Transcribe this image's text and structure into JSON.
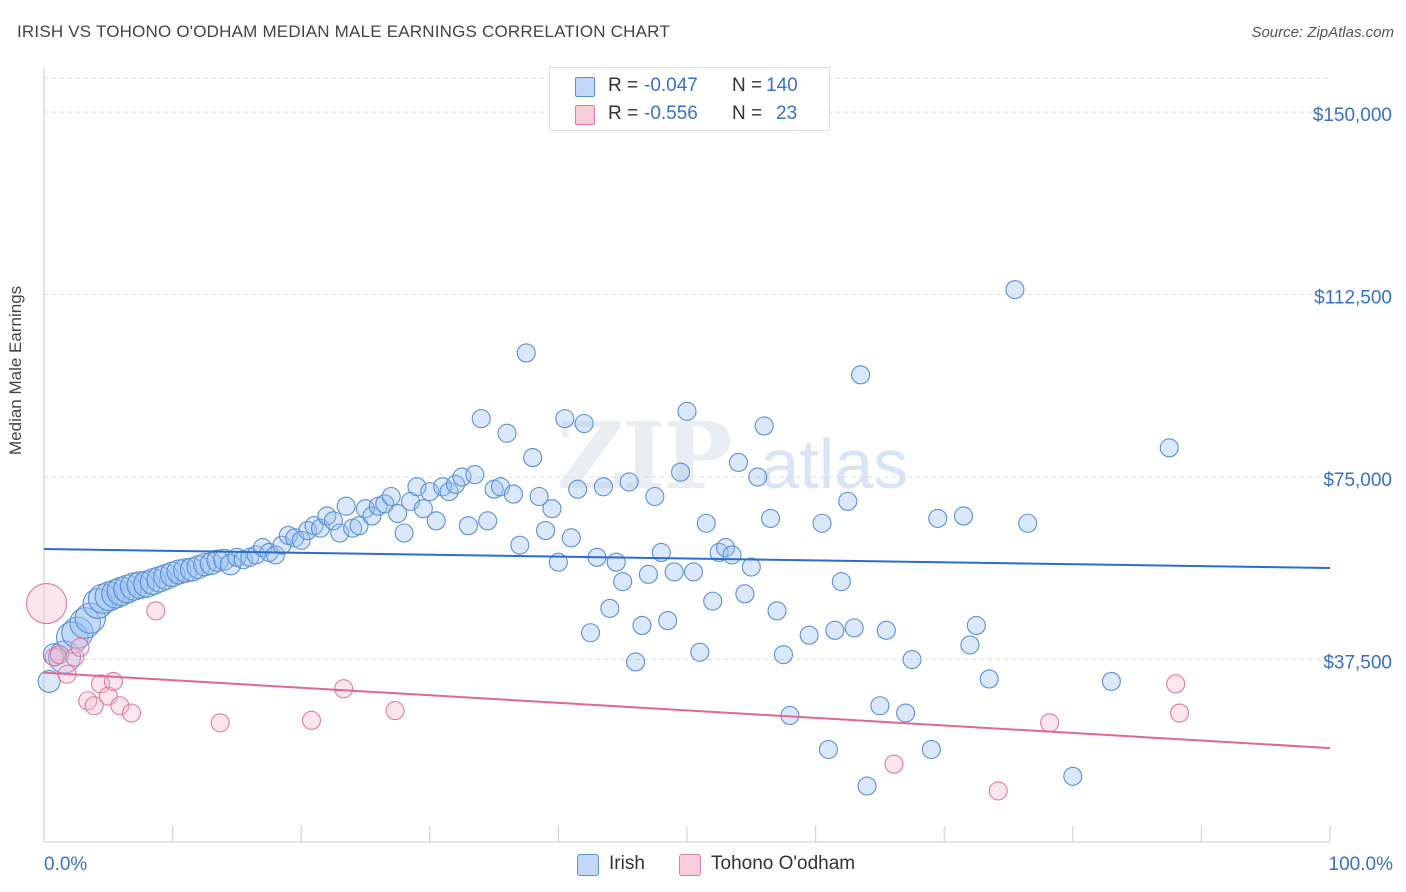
{
  "header": {
    "title": "IRISH VS TOHONO O'ODHAM MEDIAN MALE EARNINGS CORRELATION CHART",
    "source": "Source: ZipAtlas.com"
  },
  "watermark": {
    "zip": "ZIP",
    "atlas": "atlas"
  },
  "legend": {
    "r_label": "R =",
    "n_label": "N =",
    "rows": [
      {
        "r": "-0.047",
        "n": "140",
        "color": "#a9c8f3"
      },
      {
        "r": "-0.556",
        "n": "23",
        "color": "#f7b6cc"
      }
    ]
  },
  "bottom_legend": [
    {
      "label": "Irish",
      "color": "#a9c8f3"
    },
    {
      "label": "Tohono O'odham",
      "color": "#f7b6cc"
    }
  ],
  "colors": {
    "irish_fill": "rgba(150,190,240,0.35)",
    "irish_stroke": "#5b8fd6",
    "irish_line": "#2a6ccf",
    "tohono_fill": "rgba(247,182,204,0.35)",
    "tohono_stroke": "#e07aa0",
    "tohono_line": "#e0688f",
    "axis_label": "#3a6fc9",
    "grid": "#dddddd"
  },
  "chart_data": {
    "type": "scatter",
    "xlabel": "",
    "ylabel": "Median Male Earnings",
    "xlim": [
      0,
      100
    ],
    "ylim": [
      0,
      157000
    ],
    "x_tick_labels": [
      "0.0%",
      "100.0%"
    ],
    "y_ticks": [
      37500,
      75000,
      112500,
      150000
    ],
    "y_tick_labels": [
      "$37,500",
      "$75,000",
      "$112,500",
      "$150,000"
    ],
    "grid": "horizontal dashed",
    "series": [
      {
        "name": "Irish",
        "r": -0.047,
        "n": 140,
        "trend": {
          "x": [
            0,
            100
          ],
          "y": [
            60200,
            56300
          ]
        },
        "points": [
          [
            0.4,
            33000
          ],
          [
            0.8,
            38500
          ],
          [
            1.6,
            38000
          ],
          [
            2.2,
            42000
          ],
          [
            2.6,
            43000
          ],
          [
            3.2,
            45000
          ],
          [
            3.6,
            46000
          ],
          [
            4.2,
            49000
          ],
          [
            4.6,
            50000
          ],
          [
            5.1,
            50500
          ],
          [
            5.6,
            51000
          ],
          [
            6.0,
            51500
          ],
          [
            6.5,
            52000
          ],
          [
            7.0,
            52500
          ],
          [
            7.5,
            52800
          ],
          [
            8.0,
            53000
          ],
          [
            8.5,
            53500
          ],
          [
            9.0,
            54000
          ],
          [
            9.5,
            54500
          ],
          [
            10.0,
            55000
          ],
          [
            10.5,
            55500
          ],
          [
            11.0,
            55800
          ],
          [
            11.5,
            56000
          ],
          [
            12.0,
            56500
          ],
          [
            12.5,
            57000
          ],
          [
            13.0,
            57200
          ],
          [
            13.5,
            57800
          ],
          [
            14.0,
            58000
          ],
          [
            14.5,
            57000
          ],
          [
            15.0,
            58500
          ],
          [
            15.5,
            58000
          ],
          [
            16.0,
            58500
          ],
          [
            16.5,
            59000
          ],
          [
            17.0,
            60500
          ],
          [
            17.5,
            59500
          ],
          [
            18.0,
            59000
          ],
          [
            18.5,
            61000
          ],
          [
            19.0,
            63000
          ],
          [
            19.5,
            62500
          ],
          [
            20.0,
            62000
          ],
          [
            20.5,
            64000
          ],
          [
            21.0,
            65000
          ],
          [
            21.5,
            64500
          ],
          [
            22.0,
            67000
          ],
          [
            22.5,
            66000
          ],
          [
            23.0,
            63500
          ],
          [
            23.5,
            69000
          ],
          [
            24.0,
            64500
          ],
          [
            24.5,
            65000
          ],
          [
            25.0,
            68500
          ],
          [
            25.5,
            67000
          ],
          [
            26.0,
            69000
          ],
          [
            26.5,
            69500
          ],
          [
            27.0,
            71000
          ],
          [
            27.5,
            67500
          ],
          [
            28.0,
            63500
          ],
          [
            28.5,
            70000
          ],
          [
            29.0,
            73000
          ],
          [
            29.5,
            68500
          ],
          [
            30.0,
            72000
          ],
          [
            30.5,
            66000
          ],
          [
            31.0,
            73000
          ],
          [
            31.5,
            72000
          ],
          [
            32.0,
            73500
          ],
          [
            32.5,
            75000
          ],
          [
            33.0,
            65000
          ],
          [
            33.5,
            75500
          ],
          [
            34.0,
            87000
          ],
          [
            34.5,
            66000
          ],
          [
            35.0,
            72500
          ],
          [
            35.5,
            73000
          ],
          [
            36.0,
            84000
          ],
          [
            36.5,
            71500
          ],
          [
            37.0,
            61000
          ],
          [
            37.5,
            100500
          ],
          [
            38.0,
            79000
          ],
          [
            38.5,
            71000
          ],
          [
            39.0,
            64000
          ],
          [
            39.5,
            68500
          ],
          [
            40.0,
            57500
          ],
          [
            40.5,
            87000
          ],
          [
            41.0,
            62500
          ],
          [
            41.5,
            72500
          ],
          [
            42.0,
            86000
          ],
          [
            42.5,
            43000
          ],
          [
            43.0,
            58500
          ],
          [
            43.5,
            73000
          ],
          [
            44.0,
            48000
          ],
          [
            44.5,
            57500
          ],
          [
            45.0,
            53500
          ],
          [
            45.5,
            74000
          ],
          [
            46.0,
            37000
          ],
          [
            46.5,
            44500
          ],
          [
            47.0,
            55000
          ],
          [
            47.5,
            71000
          ],
          [
            48.0,
            59500
          ],
          [
            48.5,
            45500
          ],
          [
            49.0,
            55500
          ],
          [
            49.5,
            76000
          ],
          [
            50.0,
            88500
          ],
          [
            50.5,
            55500
          ],
          [
            51.0,
            39000
          ],
          [
            51.5,
            65500
          ],
          [
            52.0,
            49500
          ],
          [
            52.5,
            59500
          ],
          [
            53.0,
            60500
          ],
          [
            53.5,
            59000
          ],
          [
            54.0,
            78000
          ],
          [
            54.5,
            51000
          ],
          [
            55.0,
            56500
          ],
          [
            55.5,
            75000
          ],
          [
            56.0,
            85500
          ],
          [
            56.5,
            66500
          ],
          [
            57.0,
            47500
          ],
          [
            57.5,
            38500
          ],
          [
            58.0,
            26000
          ],
          [
            59.5,
            42500
          ],
          [
            60.5,
            65500
          ],
          [
            61.0,
            19000
          ],
          [
            61.5,
            43500
          ],
          [
            62.0,
            53500
          ],
          [
            62.5,
            70000
          ],
          [
            63.0,
            44000
          ],
          [
            63.5,
            96000
          ],
          [
            64.0,
            11500
          ],
          [
            65.0,
            28000
          ],
          [
            65.5,
            43500
          ],
          [
            67.0,
            26500
          ],
          [
            67.5,
            37500
          ],
          [
            69.0,
            19000
          ],
          [
            69.5,
            66500
          ],
          [
            71.5,
            67000
          ],
          [
            72.0,
            40500
          ],
          [
            72.5,
            44500
          ],
          [
            73.5,
            33500
          ],
          [
            75.5,
            113500
          ],
          [
            76.5,
            65500
          ],
          [
            80.0,
            13500
          ],
          [
            83.0,
            33000
          ],
          [
            87.5,
            81000
          ]
        ]
      },
      {
        "name": "Tohono O'odham",
        "r": -0.556,
        "n": 23,
        "trend": {
          "x": [
            0,
            100
          ],
          "y": [
            34800,
            19300
          ]
        },
        "points": [
          [
            0.2,
            49000
          ],
          [
            0.8,
            38000
          ],
          [
            1.2,
            38500
          ],
          [
            1.8,
            34500
          ],
          [
            2.4,
            38000
          ],
          [
            2.8,
            40000
          ],
          [
            3.4,
            29000
          ],
          [
            3.9,
            28000
          ],
          [
            4.4,
            32500
          ],
          [
            5.0,
            30000
          ],
          [
            5.4,
            33000
          ],
          [
            5.9,
            28000
          ],
          [
            6.8,
            26500
          ],
          [
            8.7,
            47500
          ],
          [
            13.7,
            24500
          ],
          [
            20.8,
            25000
          ],
          [
            23.3,
            31500
          ],
          [
            27.3,
            27000
          ],
          [
            66.1,
            16000
          ],
          [
            74.2,
            10500
          ],
          [
            78.2,
            24500
          ],
          [
            88.0,
            32500
          ],
          [
            88.3,
            26500
          ]
        ]
      }
    ]
  }
}
